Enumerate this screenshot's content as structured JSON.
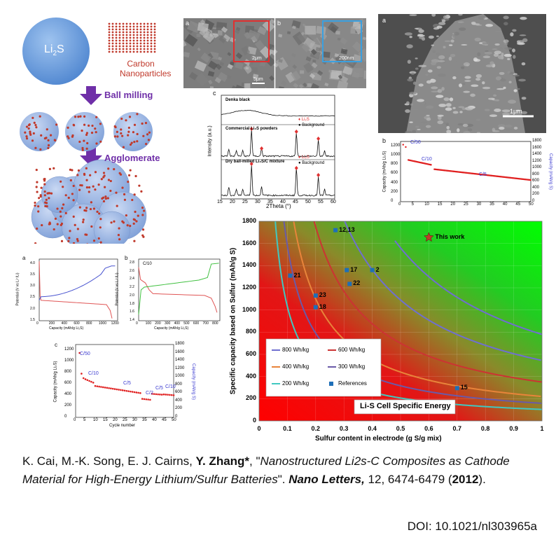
{
  "schematic": {
    "sphere_label": "Li",
    "sphere_sub": "2",
    "sphere_label_end": "S",
    "carbon_label_1": "Carbon",
    "carbon_label_2": "Nanoparticles",
    "step1": "Ball milling",
    "step2": "Agglomerate"
  },
  "sem_top": {
    "a": "a",
    "b": "b",
    "scale_a": "2μm",
    "scale_b": "200nm",
    "scale_a2": "5μm"
  },
  "sem_right": {
    "a": "a",
    "scale": "1μm"
  },
  "xrd": {
    "label": "c",
    "t1": "Denka black",
    "t2": "Commercial Li₂S powders",
    "t3": "Dry ball-milled Li₂S/C mixture",
    "leg1": "Li₂S",
    "leg2": "Background",
    "ylabel": "Intensity (a.u.)",
    "xlabel": "2Theta (°)",
    "xticks": [
      "15",
      "20",
      "25",
      "30",
      "35",
      "40",
      "45",
      "50",
      "55",
      "60"
    ]
  },
  "cap_right": {
    "label": "b",
    "ylabel": "Capacity (mAh/g Li₂S)",
    "y2label": "Capacity (mAh/g S)",
    "xlabel": "Cycle number",
    "yticks": [
      "0",
      "200",
      "400",
      "600",
      "800",
      "1000",
      "1200"
    ],
    "y2ticks": [
      "0",
      "200",
      "400",
      "600",
      "800",
      "1000",
      "1200",
      "1400",
      "1600",
      "1800"
    ],
    "xticks": [
      "0",
      "5",
      "10",
      "15",
      "20",
      "25",
      "30",
      "35",
      "40",
      "45",
      "50"
    ],
    "r1": "C/50",
    "r2": "C/10",
    "r3": "C/5"
  },
  "volt_a": {
    "label": "a",
    "ylabel": "Potential (V vs Li⁺/Li)",
    "xlabel": "Capacity (mAh/g Li₂S)",
    "yticks": [
      "1.5",
      "2.0",
      "2.5",
      "3.0",
      "3.5",
      "4.0"
    ],
    "xticks": [
      "0",
      "200",
      "400",
      "600",
      "800",
      "1000",
      "1200"
    ]
  },
  "volt_b": {
    "label": "b",
    "rate": "C/10",
    "ylabel": "Potential (V vs Li⁺/Li)",
    "xlabel": "Capacity (mAh/g Li₂S)",
    "yticks": [
      "1.4",
      "1.6",
      "1.8",
      "2.0",
      "2.2",
      "2.4",
      "2.6",
      "2.8"
    ],
    "xticks": [
      "0",
      "100",
      "200",
      "300",
      "400",
      "500",
      "600",
      "700",
      "800"
    ]
  },
  "cap_c": {
    "label": "c",
    "ylabel": "Capacity (mAh/g Li₂S)",
    "y2label": "Capacity (mAh/g S)",
    "xlabel": "Cycle number",
    "yticks": [
      "0",
      "200",
      "400",
      "600",
      "800",
      "1000",
      "1200"
    ],
    "y2ticks": [
      "0",
      "200",
      "400",
      "600",
      "800",
      "1000",
      "1200",
      "1400",
      "1600",
      "1800"
    ],
    "xticks": [
      "0",
      "5",
      "10",
      "15",
      "20",
      "25",
      "30",
      "35",
      "40",
      "45",
      "50"
    ],
    "r1": "C/50",
    "r2": "C/10",
    "r3": "C/5",
    "r4": "C/2",
    "r5": "C/5",
    "r6": "C/10"
  },
  "chart_data": {
    "type": "scatter",
    "title": "Li-S Cell Specific Energy",
    "xlabel": "Sulfur content in electrode (g S/g mix)",
    "ylabel": "Specific capacity based on Sulfur (mAh/g S)",
    "xlim": [
      0,
      1
    ],
    "ylim": [
      0,
      1800
    ],
    "xticks": [
      "0",
      "0.1",
      "0.2",
      "0.3",
      "0.4",
      "0.5",
      "0.6",
      "0.7",
      "0.8",
      "0.9",
      "1"
    ],
    "yticks": [
      "0",
      "200",
      "400",
      "600",
      "800",
      "1000",
      "1200",
      "1400",
      "1600",
      "1800"
    ],
    "legend_position": "bottom-left",
    "series": [
      {
        "name": "800 Wh/kg",
        "color": "#6f6fd0",
        "energy": 800
      },
      {
        "name": "600 Wh/kg",
        "color": "#cc3333",
        "energy": 600
      },
      {
        "name": "400 Wh/kg",
        "color": "#e8843a",
        "energy": 400
      },
      {
        "name": "300 Wh/kg",
        "color": "#6a5aa8",
        "energy": 300
      },
      {
        "name": "200 Wh/kg",
        "color": "#40c8c0",
        "energy": 200
      }
    ],
    "references": {
      "name": "References",
      "points": [
        {
          "label": "12,13",
          "x": 0.27,
          "y": 1720
        },
        {
          "label": "17",
          "x": 0.31,
          "y": 1360
        },
        {
          "label": "2",
          "x": 0.4,
          "y": 1360
        },
        {
          "label": "22",
          "x": 0.32,
          "y": 1235
        },
        {
          "label": "21",
          "x": 0.11,
          "y": 1310
        },
        {
          "label": "23",
          "x": 0.2,
          "y": 1130
        },
        {
          "label": "18",
          "x": 0.2,
          "y": 1025
        },
        {
          "label": "15",
          "x": 0.7,
          "y": 295
        }
      ]
    },
    "this_work": {
      "label": "This work",
      "x": 0.6,
      "y": 1655
    }
  },
  "citation": {
    "authors": "K. Cai, M.-K. Song, E. J. Cairns, ",
    "corresp": "Y. Zhang*",
    "sep": ",  \"",
    "title": "Nanostructured Li2s-C Composites as Cathode Material for High-Energy Lithium/Sulfur Batteries",
    "close": "\". ",
    "journal": "Nano Letters,",
    "vol": " 12, 6474-6479 (",
    "year": "2012",
    "end": ")."
  },
  "doi": "DOI: 10.1021/nl303965a"
}
